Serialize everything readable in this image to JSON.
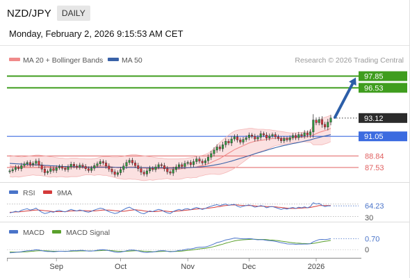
{
  "header": {
    "pair": "NZD/JPY",
    "timeframe": "DAILY",
    "datetime": "Monday, February 2, 2026 9:15:53 AM CET"
  },
  "legend": {
    "ma20": "MA 20 + Bollinger Bands",
    "ma50": "MA 50",
    "credit": "Research © 2026 Trading Central",
    "rsi": "RSI",
    "rsi_ma": "9MA",
    "macd": "MACD",
    "macd_signal": "MACD Signal"
  },
  "colors": {
    "up_candle": "#2e9e3e",
    "down_candle": "#e0303a",
    "ma20": "#f08a8a",
    "ma50": "#3a62a8",
    "band_fill": "#fbe1e1",
    "target_line": "#3f9d1e",
    "pivot_line": "#3b6be0",
    "support_line": "#e06060",
    "arrow": "#2c5ea8",
    "rsi_line": "#4a74c9",
    "rsi_ma_line": "#d43a3a",
    "macd_line": "#4a74c9",
    "signal_line": "#5aa02c"
  },
  "chart_data": {
    "type": "candlestick",
    "timeframe": "daily",
    "x_ticks": [
      "Sep",
      "Oct",
      "Nov",
      "Dec",
      "2026"
    ],
    "y_range": [
      86.2,
      98.6
    ],
    "levels": [
      {
        "label": "97.85",
        "value": 97.85,
        "kind": "target"
      },
      {
        "label": "96.53",
        "value": 96.53,
        "kind": "target"
      },
      {
        "label": "93.12",
        "value": 93.12,
        "kind": "last"
      },
      {
        "label": "91.05",
        "value": 91.05,
        "kind": "pivot"
      },
      {
        "label": "88.84",
        "value": 88.84,
        "kind": "support"
      },
      {
        "label": "87.53",
        "value": 87.53,
        "kind": "support"
      }
    ],
    "closes": [
      87.15,
      87.3,
      87.55,
      87.4,
      87.75,
      87.95,
      88.1,
      87.85,
      88.0,
      88.25,
      87.8,
      87.35,
      86.95,
      87.1,
      87.4,
      87.2,
      87.5,
      87.65,
      87.45,
      87.3,
      87.6,
      87.9,
      87.7,
      87.55,
      87.8,
      87.65,
      87.4,
      87.2,
      87.45,
      87.75,
      87.95,
      88.2,
      88.05,
      87.7,
      87.35,
      87.05,
      86.75,
      86.95,
      87.3,
      87.7,
      88.1,
      88.35,
      88.05,
      87.75,
      87.4,
      87.0,
      86.8,
      87.15,
      87.45,
      87.3,
      87.6,
      87.85,
      87.75,
      87.4,
      87.05,
      86.9,
      87.3,
      87.6,
      87.85,
      87.65,
      88.0,
      88.1,
      87.85,
      88.2,
      88.5,
      88.25,
      88.05,
      88.3,
      88.7,
      89.1,
      89.5,
      89.85,
      89.65,
      90.1,
      90.5,
      90.3,
      90.75,
      91.0,
      90.65,
      90.4,
      90.7,
      90.9,
      91.2,
      91.05,
      90.75,
      90.95,
      91.35,
      91.2,
      90.85,
      91.1,
      91.25,
      91.0,
      90.8,
      90.55,
      90.8,
      90.65,
      90.9,
      91.15,
      90.9,
      91.25,
      91.1,
      91.45,
      91.2,
      91.55,
      92.9,
      92.6,
      92.95,
      92.4,
      92.1,
      92.65,
      93.12
    ],
    "bollinger_upper": [
      88.9,
      88.85,
      88.8,
      88.75,
      88.7,
      88.75,
      88.8,
      88.85,
      88.9,
      88.95,
      88.95,
      88.9,
      88.85,
      88.8,
      88.75,
      88.7,
      88.65,
      88.6,
      88.6,
      88.55,
      88.55,
      88.6,
      88.6,
      88.6,
      88.55,
      88.55,
      88.5,
      88.5,
      88.5,
      88.55,
      88.6,
      88.7,
      88.75,
      88.75,
      88.75,
      88.7,
      88.7,
      88.7,
      88.75,
      88.8,
      88.9,
      88.95,
      89.0,
      89.0,
      88.95,
      88.9,
      88.85,
      88.8,
      88.75,
      88.7,
      88.65,
      88.6,
      88.6,
      88.55,
      88.5,
      88.5,
      88.5,
      88.5,
      88.5,
      88.55,
      88.55,
      88.6,
      88.65,
      88.7,
      88.8,
      88.85,
      88.9,
      89.0,
      89.15,
      89.4,
      89.7,
      90.05,
      90.35,
      90.65,
      90.95,
      91.2,
      91.45,
      91.65,
      91.75,
      91.8,
      91.85,
      91.9,
      91.95,
      91.95,
      91.9,
      91.85,
      91.85,
      91.85,
      91.8,
      91.8,
      91.75,
      91.7,
      91.65,
      91.6,
      91.55,
      91.5,
      91.45,
      91.45,
      91.45,
      91.5,
      91.5,
      91.55,
      91.6,
      91.7,
      92.3,
      92.6,
      92.9,
      93.1,
      93.2,
      93.3,
      93.45
    ],
    "ma20": [
      87.7,
      87.65,
      87.65,
      87.6,
      87.6,
      87.65,
      87.7,
      87.75,
      87.8,
      87.8,
      87.8,
      87.75,
      87.7,
      87.65,
      87.6,
      87.6,
      87.55,
      87.55,
      87.55,
      87.5,
      87.5,
      87.55,
      87.55,
      87.55,
      87.55,
      87.6,
      87.6,
      87.6,
      87.6,
      87.6,
      87.65,
      87.7,
      87.7,
      87.7,
      87.65,
      87.6,
      87.55,
      87.5,
      87.5,
      87.5,
      87.55,
      87.6,
      87.6,
      87.6,
      87.55,
      87.5,
      87.45,
      87.45,
      87.45,
      87.4,
      87.4,
      87.4,
      87.4,
      87.4,
      87.4,
      87.35,
      87.35,
      87.35,
      87.35,
      87.4,
      87.45,
      87.5,
      87.5,
      87.55,
      87.6,
      87.7,
      87.75,
      87.85,
      87.95,
      88.1,
      88.25,
      88.4,
      88.55,
      88.75,
      88.95,
      89.15,
      89.35,
      89.55,
      89.7,
      89.85,
      90.0,
      90.15,
      90.3,
      90.4,
      90.5,
      90.55,
      90.6,
      90.65,
      90.7,
      90.75,
      90.8,
      90.85,
      90.85,
      90.85,
      90.85,
      90.85,
      90.85,
      90.9,
      90.9,
      90.95,
      90.95,
      91.0,
      91.0,
      91.05,
      91.2,
      91.35,
      91.5,
      91.6,
      91.7,
      91.8,
      91.95
    ],
    "bollinger_lower": [
      86.5,
      86.45,
      86.5,
      86.45,
      86.5,
      86.55,
      86.6,
      86.65,
      86.7,
      86.65,
      86.65,
      86.6,
      86.55,
      86.5,
      86.45,
      86.5,
      86.45,
      86.5,
      86.5,
      86.45,
      86.45,
      86.5,
      86.5,
      86.5,
      86.55,
      86.65,
      86.7,
      86.7,
      86.7,
      86.65,
      86.7,
      86.7,
      86.65,
      86.65,
      86.55,
      86.5,
      86.4,
      86.3,
      86.25,
      86.2,
      86.2,
      86.25,
      86.2,
      86.2,
      86.15,
      86.1,
      86.05,
      86.1,
      86.15,
      86.1,
      86.15,
      86.2,
      86.2,
      86.25,
      86.3,
      86.2,
      86.2,
      86.2,
      86.2,
      86.25,
      86.35,
      86.4,
      86.35,
      86.4,
      86.4,
      86.55,
      86.6,
      86.7,
      86.75,
      86.8,
      86.8,
      86.75,
      86.75,
      86.85,
      86.95,
      87.1,
      87.25,
      87.45,
      87.65,
      87.9,
      88.15,
      88.4,
      88.65,
      88.85,
      89.1,
      89.25,
      89.35,
      89.45,
      89.6,
      89.7,
      89.85,
      90.0,
      90.05,
      90.1,
      90.15,
      90.2,
      90.25,
      90.35,
      90.35,
      90.4,
      90.4,
      90.45,
      90.4,
      90.4,
      90.1,
      90.1,
      90.1,
      90.1,
      90.2,
      90.3,
      90.45
    ],
    "ma50": [
      88.0,
      87.98,
      87.96,
      87.94,
      87.92,
      87.9,
      87.88,
      87.86,
      87.84,
      87.83,
      87.82,
      87.8,
      87.78,
      87.76,
      87.74,
      87.72,
      87.7,
      87.68,
      87.66,
      87.65,
      87.64,
      87.63,
      87.62,
      87.61,
      87.6,
      87.59,
      87.58,
      87.57,
      87.56,
      87.56,
      87.56,
      87.57,
      87.57,
      87.57,
      87.57,
      87.57,
      87.56,
      87.55,
      87.55,
      87.54,
      87.54,
      87.54,
      87.54,
      87.54,
      87.54,
      87.53,
      87.52,
      87.52,
      87.52,
      87.52,
      87.51,
      87.51,
      87.5,
      87.5,
      87.49,
      87.48,
      87.48,
      87.48,
      87.48,
      87.49,
      87.5,
      87.52,
      87.53,
      87.55,
      87.57,
      87.6,
      87.63,
      87.66,
      87.7,
      87.75,
      87.8,
      87.86,
      87.92,
      88.0,
      88.08,
      88.17,
      88.26,
      88.36,
      88.46,
      88.56,
      88.66,
      88.76,
      88.87,
      88.98,
      89.08,
      89.18,
      89.28,
      89.38,
      89.48,
      89.58,
      89.68,
      89.77,
      89.86,
      89.94,
      90.02,
      90.09,
      90.16,
      90.23,
      90.3,
      90.37,
      90.44,
      90.51,
      90.58,
      90.65,
      90.75,
      90.84,
      90.93,
      91.01,
      91.09,
      91.17,
      91.25
    ],
    "rsi": {
      "levels": [
        70,
        30
      ],
      "last_value": "64.23",
      "level_label": "30",
      "values": [
        42,
        44,
        47,
        45,
        50,
        53,
        55,
        51,
        53,
        57,
        50,
        44,
        40,
        42,
        46,
        44,
        48,
        50,
        47,
        45,
        49,
        53,
        50,
        48,
        51,
        49,
        46,
        44,
        47,
        51,
        54,
        57,
        55,
        50,
        46,
        43,
        40,
        42,
        47,
        52,
        57,
        60,
        55,
        51,
        46,
        41,
        39,
        44,
        48,
        46,
        50,
        53,
        51,
        46,
        42,
        40,
        46,
        50,
        53,
        50,
        54,
        55,
        52,
        56,
        59,
        56,
        53,
        56,
        60,
        63,
        66,
        68,
        65,
        68,
        70,
        66,
        68,
        69,
        63,
        60,
        63,
        65,
        67,
        64,
        60,
        62,
        65,
        63,
        58,
        61,
        62,
        59,
        56,
        53,
        56,
        54,
        57,
        59,
        56,
        60,
        58,
        61,
        58,
        62,
        74,
        70,
        72,
        66,
        62,
        64,
        64.23
      ],
      "ma9": [
        44,
        44,
        45,
        45,
        46,
        47,
        48,
        49,
        50,
        51,
        51,
        50,
        49,
        48,
        47,
        46,
        46,
        46,
        46,
        46,
        47,
        48,
        48,
        48,
        49,
        49,
        49,
        48,
        48,
        48,
        49,
        50,
        51,
        51,
        51,
        50,
        49,
        48,
        47,
        47,
        48,
        50,
        51,
        52,
        51,
        50,
        48,
        47,
        46,
        46,
        46,
        47,
        48,
        48,
        47,
        46,
        46,
        47,
        48,
        49,
        50,
        51,
        52,
        53,
        54,
        55,
        55,
        56,
        57,
        58,
        59,
        61,
        62,
        64,
        65,
        66,
        67,
        67,
        67,
        66,
        65,
        65,
        65,
        65,
        64,
        63,
        63,
        63,
        62,
        62,
        62,
        61,
        60,
        59,
        58,
        57,
        56,
        56,
        56,
        57,
        57,
        58,
        58,
        59,
        61,
        63,
        65,
        65,
        65,
        65,
        65
      ]
    },
    "macd": {
      "last_value": "0.70",
      "zero_label": "0",
      "macd": [
        -0.2,
        -0.19,
        -0.17,
        -0.16,
        -0.13,
        -0.1,
        -0.07,
        -0.06,
        -0.04,
        -0.01,
        -0.02,
        -0.06,
        -0.1,
        -0.12,
        -0.12,
        -0.13,
        -0.12,
        -0.1,
        -0.1,
        -0.11,
        -0.1,
        -0.07,
        -0.06,
        -0.06,
        -0.05,
        -0.05,
        -0.07,
        -0.09,
        -0.09,
        -0.07,
        -0.04,
        -0.01,
        0.0,
        -0.02,
        -0.06,
        -0.1,
        -0.15,
        -0.17,
        -0.16,
        -0.12,
        -0.07,
        -0.03,
        -0.02,
        -0.04,
        -0.08,
        -0.13,
        -0.17,
        -0.18,
        -0.16,
        -0.15,
        -0.12,
        -0.08,
        -0.06,
        -0.07,
        -0.1,
        -0.13,
        -0.12,
        -0.09,
        -0.05,
        -0.04,
        0.0,
        0.04,
        0.05,
        0.08,
        0.13,
        0.15,
        0.15,
        0.17,
        0.22,
        0.29,
        0.37,
        0.45,
        0.49,
        0.55,
        0.62,
        0.65,
        0.69,
        0.74,
        0.73,
        0.7,
        0.69,
        0.69,
        0.7,
        0.69,
        0.65,
        0.63,
        0.64,
        0.63,
        0.59,
        0.57,
        0.56,
        0.53,
        0.49,
        0.44,
        0.41,
        0.37,
        0.36,
        0.36,
        0.34,
        0.35,
        0.35,
        0.36,
        0.36,
        0.38,
        0.5,
        0.57,
        0.64,
        0.65,
        0.64,
        0.66,
        0.7
      ],
      "signal": [
        -0.15,
        -0.16,
        -0.16,
        -0.16,
        -0.15,
        -0.14,
        -0.13,
        -0.11,
        -0.1,
        -0.08,
        -0.07,
        -0.07,
        -0.07,
        -0.08,
        -0.09,
        -0.1,
        -0.1,
        -0.1,
        -0.1,
        -0.1,
        -0.1,
        -0.1,
        -0.09,
        -0.09,
        -0.08,
        -0.08,
        -0.08,
        -0.08,
        -0.08,
        -0.08,
        -0.07,
        -0.06,
        -0.05,
        -0.04,
        -0.05,
        -0.06,
        -0.08,
        -0.1,
        -0.11,
        -0.11,
        -0.1,
        -0.09,
        -0.08,
        -0.07,
        -0.07,
        -0.08,
        -0.1,
        -0.11,
        -0.12,
        -0.13,
        -0.13,
        -0.12,
        -0.11,
        -0.1,
        -0.1,
        -0.11,
        -0.11,
        -0.11,
        -0.1,
        -0.09,
        -0.07,
        -0.05,
        -0.03,
        -0.01,
        0.02,
        0.05,
        0.07,
        0.09,
        0.12,
        0.15,
        0.2,
        0.25,
        0.3,
        0.35,
        0.41,
        0.46,
        0.51,
        0.56,
        0.59,
        0.61,
        0.63,
        0.64,
        0.65,
        0.66,
        0.66,
        0.65,
        0.65,
        0.65,
        0.64,
        0.62,
        0.61,
        0.59,
        0.57,
        0.54,
        0.52,
        0.49,
        0.46,
        0.44,
        0.42,
        0.41,
        0.4,
        0.39,
        0.38,
        0.38,
        0.4,
        0.43,
        0.47,
        0.5,
        0.53,
        0.56,
        0.59
      ]
    }
  }
}
